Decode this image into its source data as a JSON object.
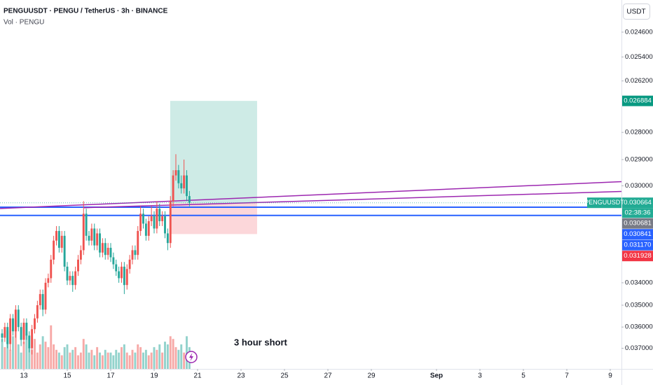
{
  "chart_data": {
    "type": "candlestick",
    "title": "PENGUUSDT · PENGU / TetherUS · 3h · BINANCE",
    "subtitle": "Vol · PENGU",
    "y_unit_label": "USDT",
    "annotation": "3 hour short",
    "up_color": "#26a69a",
    "down_color": "#ef5350",
    "log_scale": true,
    "inverted": true,
    "grid": false,
    "ylim": [
      0.0236,
      0.038
    ],
    "yticks": [
      {
        "value": 0.0246,
        "label": "0.024600"
      },
      {
        "value": 0.0254,
        "label": "0.025400"
      },
      {
        "value": 0.0262,
        "label": "0.026200"
      },
      {
        "value": 0.028,
        "label": "0.028000"
      },
      {
        "value": 0.029,
        "label": "0.029000"
      },
      {
        "value": 0.03,
        "label": "0.030000"
      },
      {
        "value": 0.034,
        "label": "0.034000"
      },
      {
        "value": 0.035,
        "label": "0.035000"
      },
      {
        "value": 0.036,
        "label": "0.036000"
      },
      {
        "value": 0.037,
        "label": "0.037000"
      }
    ],
    "xlim": [
      11.903,
      40.516
    ],
    "xticks": [
      13,
      15,
      17,
      19,
      21,
      23,
      25,
      27,
      29,
      {
        "value": 32,
        "label": "Sep"
      },
      {
        "value": 34,
        "label": "3"
      },
      {
        "value": 36,
        "label": "5"
      },
      {
        "value": 38,
        "label": "7"
      },
      {
        "value": 40,
        "label": "9"
      }
    ],
    "x": [
      12.0,
      12.125,
      12.25,
      12.375,
      12.5,
      12.625,
      12.75,
      12.875,
      13.0,
      13.125,
      13.25,
      13.375,
      13.5,
      13.625,
      13.75,
      13.875,
      14.0,
      14.125,
      14.25,
      14.375,
      14.5,
      14.625,
      14.75,
      14.875,
      15.0,
      15.125,
      15.25,
      15.375,
      15.5,
      15.625,
      15.75,
      15.875,
      16.0,
      16.125,
      16.25,
      16.375,
      16.5,
      16.625,
      16.75,
      16.875,
      17.0,
      17.125,
      17.25,
      17.375,
      17.5,
      17.625,
      17.75,
      17.875,
      18.0,
      18.125,
      18.25,
      18.375,
      18.5,
      18.625,
      18.75,
      18.875,
      19.0,
      19.125,
      19.25,
      19.375,
      19.5,
      19.625,
      19.75,
      19.875,
      20.0,
      20.125,
      20.25,
      20.375,
      20.5,
      20.625
    ],
    "open": [
      0.0363,
      0.0365,
      0.036,
      0.0368,
      0.0356,
      0.0362,
      0.0352,
      0.036,
      0.0366,
      0.0358,
      0.0364,
      0.037,
      0.0361,
      0.0356,
      0.035,
      0.0345,
      0.0352,
      0.034,
      0.0338,
      0.033,
      0.0322,
      0.0318,
      0.0325,
      0.032,
      0.0333,
      0.0339,
      0.0337,
      0.0341,
      0.0335,
      0.033,
      0.0326,
      0.0311,
      0.032,
      0.0322,
      0.0317,
      0.0324,
      0.0319,
      0.0327,
      0.0323,
      0.0328,
      0.0325,
      0.0329,
      0.0332,
      0.0335,
      0.0338,
      0.0333,
      0.0341,
      0.0334,
      0.033,
      0.0326,
      0.0328,
      0.0318,
      0.0311,
      0.0315,
      0.032,
      0.0314,
      0.0312,
      0.0317,
      0.0309,
      0.0314,
      0.0312,
      0.0319,
      0.0323,
      0.0306,
      0.0296,
      0.0294,
      0.0299,
      0.0301,
      0.0296,
      0.0304
    ],
    "high": [
      0.0367,
      0.0367,
      0.037,
      0.0371,
      0.0364,
      0.0365,
      0.0362,
      0.0369,
      0.0368,
      0.0366,
      0.0372,
      0.0373,
      0.0363,
      0.0358,
      0.0352,
      0.0355,
      0.0354,
      0.0342,
      0.034,
      0.0332,
      0.0324,
      0.0327,
      0.0327,
      0.0335,
      0.0341,
      0.0341,
      0.0344,
      0.0343,
      0.0337,
      0.0332,
      0.0328,
      0.0322,
      0.0324,
      0.0324,
      0.0326,
      0.0326,
      0.0329,
      0.0329,
      0.033,
      0.033,
      0.0331,
      0.0334,
      0.0337,
      0.034,
      0.034,
      0.0345,
      0.0343,
      0.0336,
      0.0332,
      0.033,
      0.033,
      0.032,
      0.0317,
      0.0322,
      0.0322,
      0.0316,
      0.0319,
      0.0319,
      0.0316,
      0.0316,
      0.0321,
      0.0326,
      0.0325,
      0.0308,
      0.0298,
      0.0301,
      0.0303,
      0.0303,
      0.0306,
      0.0308
    ],
    "low": [
      0.0361,
      0.0358,
      0.0358,
      0.0354,
      0.0354,
      0.035,
      0.035,
      0.0358,
      0.0356,
      0.0356,
      0.0362,
      0.0359,
      0.0354,
      0.0348,
      0.0343,
      0.0343,
      0.0338,
      0.0336,
      0.0328,
      0.032,
      0.0316,
      0.0316,
      0.0318,
      0.0318,
      0.0331,
      0.0335,
      0.0335,
      0.0333,
      0.0328,
      0.0324,
      0.0306,
      0.0309,
      0.0318,
      0.0315,
      0.0315,
      0.0317,
      0.0317,
      0.0321,
      0.0321,
      0.0323,
      0.0323,
      0.0327,
      0.033,
      0.0333,
      0.0331,
      0.0331,
      0.0332,
      0.0328,
      0.0324,
      0.0324,
      0.0316,
      0.0308,
      0.0309,
      0.0313,
      0.0312,
      0.0308,
      0.031,
      0.0306,
      0.0307,
      0.031,
      0.031,
      0.0317,
      0.0304,
      0.0294,
      0.0288,
      0.0292,
      0.0296,
      0.029,
      0.0294,
      0.0302
    ],
    "close": [
      0.0365,
      0.036,
      0.0368,
      0.0356,
      0.0362,
      0.0352,
      0.036,
      0.0366,
      0.0358,
      0.0364,
      0.037,
      0.0361,
      0.0356,
      0.035,
      0.0345,
      0.0352,
      0.034,
      0.0338,
      0.033,
      0.0322,
      0.0318,
      0.0325,
      0.032,
      0.0333,
      0.0339,
      0.0337,
      0.0341,
      0.0335,
      0.033,
      0.0326,
      0.0311,
      0.032,
      0.0322,
      0.0317,
      0.0324,
      0.0319,
      0.0327,
      0.0323,
      0.0328,
      0.0325,
      0.0329,
      0.0332,
      0.0335,
      0.0338,
      0.0333,
      0.0341,
      0.0334,
      0.033,
      0.0326,
      0.0328,
      0.0318,
      0.0311,
      0.0315,
      0.032,
      0.0314,
      0.0312,
      0.0317,
      0.0309,
      0.0314,
      0.0312,
      0.0319,
      0.0323,
      0.0306,
      0.0296,
      0.0294,
      0.0299,
      0.0301,
      0.0296,
      0.0304,
      0.030664
    ],
    "volume": [
      55,
      40,
      70,
      35,
      60,
      90,
      45,
      30,
      50,
      65,
      40,
      35,
      55,
      30,
      45,
      60,
      50,
      40,
      80,
      45,
      35,
      30,
      25,
      40,
      45,
      30,
      35,
      40,
      25,
      30,
      55,
      45,
      30,
      35,
      25,
      40,
      30,
      25,
      35,
      30,
      30,
      25,
      35,
      30,
      40,
      45,
      30,
      25,
      35,
      30,
      45,
      40,
      30,
      35,
      25,
      30,
      40,
      35,
      45,
      30,
      50,
      45,
      60,
      55,
      40,
      35,
      45,
      30,
      60,
      40
    ],
    "position": {
      "x": [
        19.74,
        23.74
      ],
      "entry": 0.030681,
      "target": 0.026884,
      "stop": 0.031928
    },
    "horizontal_lines": [
      {
        "value": 0.030841,
        "color": "#2962ff"
      },
      {
        "value": 0.03117,
        "color": "#2962ff"
      }
    ],
    "trend_lines": [
      {
        "x": [
          11.903,
          40.516
        ],
        "y": [
          0.03089,
          0.02984
        ],
        "color": "#9c27b0"
      },
      {
        "x": [
          15.774,
          40.516
        ],
        "y": [
          0.03086,
          0.03022
        ],
        "color": "#9c27b0"
      }
    ],
    "price_labels": [
      {
        "value": 0.026884,
        "label": "0.026884",
        "color": "#089981"
      },
      {
        "name": "PENGUUSDT",
        "value": 0.030664,
        "label": "0.030664",
        "countdown": "02:38:36",
        "color": "#22ab94"
      },
      {
        "value": 0.030681,
        "label": "0.030681",
        "color": "#787b86"
      },
      {
        "value": 0.030841,
        "label": "0.030841",
        "color": "#2962ff"
      },
      {
        "value": 0.03117,
        "label": "0.031170",
        "color": "#2962ff"
      },
      {
        "value": 0.031928,
        "label": "0.031928",
        "color": "#f23645"
      }
    ]
  }
}
